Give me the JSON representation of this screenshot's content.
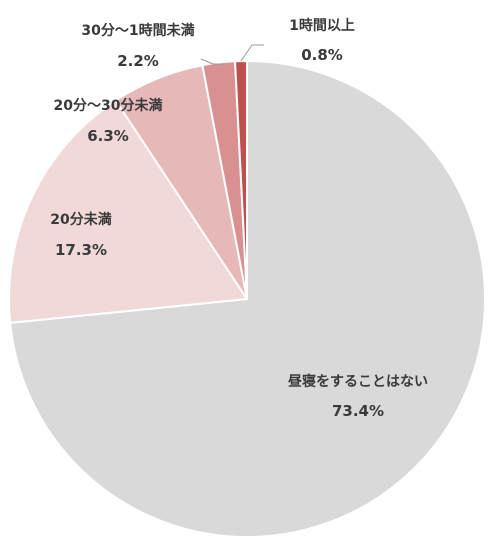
{
  "chart_data": {
    "type": "pie",
    "title": "",
    "slices": [
      {
        "label": "昼寝をすることはない",
        "value": 73.4,
        "value_label": "73.4%",
        "color": "#d9d9d9"
      },
      {
        "label": "20分未満",
        "value": 17.3,
        "value_label": "17.3%",
        "color": "#f2d9d9"
      },
      {
        "label": "20分～30分未満",
        "value": 6.3,
        "value_label": "6.3%",
        "color": "#e6b8b8"
      },
      {
        "label": "30分～1時間未満",
        "value": 2.2,
        "value_label": "2.2%",
        "color": "#d99090"
      },
      {
        "label": "1時間以上",
        "value": 0.8,
        "value_label": "0.8%",
        "color": "#c0504d"
      }
    ],
    "start_angle": "12 o'clock",
    "direction": "clockwise",
    "legend": "none"
  }
}
